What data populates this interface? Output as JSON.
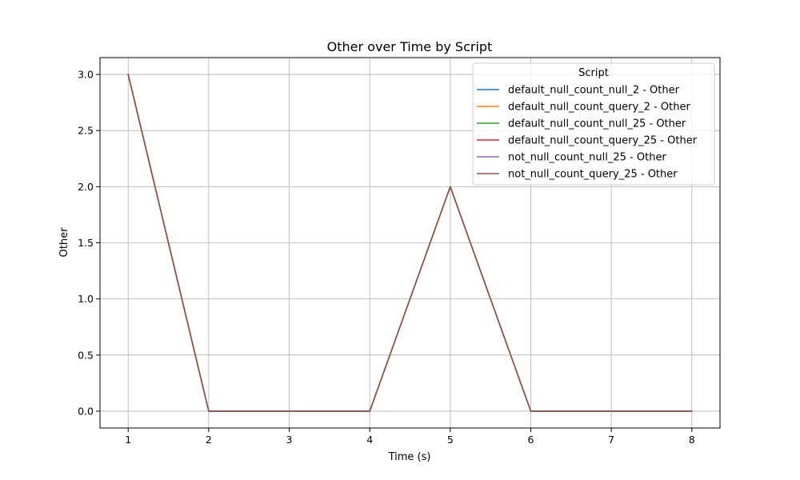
{
  "chart_data": {
    "type": "line",
    "title": "Other over Time by Script",
    "xlabel": "Time (s)",
    "ylabel": "Other",
    "xlim": [
      0.65,
      8.35
    ],
    "ylim": [
      -0.15,
      3.15
    ],
    "xticks": [
      "1",
      "2",
      "3",
      "4",
      "5",
      "6",
      "7",
      "8"
    ],
    "yticks": [
      "0.0",
      "0.5",
      "1.0",
      "1.5",
      "2.0",
      "2.5",
      "3.0"
    ],
    "grid": true,
    "legend": {
      "title": "Script",
      "position": "top-right"
    },
    "x": [
      1,
      2,
      3,
      4,
      5,
      6,
      7,
      8
    ],
    "series": [
      {
        "name": "default_null_count_null_2 - Other",
        "color": "#1f77b4",
        "values": [
          3,
          0,
          0,
          0,
          2,
          0,
          0,
          0
        ]
      },
      {
        "name": "default_null_count_query_2 - Other",
        "color": "#ff7f0e",
        "values": [
          3,
          0,
          0,
          0,
          2,
          0,
          0,
          0
        ]
      },
      {
        "name": "default_null_count_null_25 - Other",
        "color": "#2ca02c",
        "values": [
          3,
          0,
          0,
          0,
          2,
          0,
          0,
          0
        ]
      },
      {
        "name": "default_null_count_query_25 - Other",
        "color": "#d62728",
        "values": [
          3,
          0,
          0,
          0,
          2,
          0,
          0,
          0
        ]
      },
      {
        "name": "not_null_count_null_25 - Other",
        "color": "#9467bd",
        "values": [
          3,
          0,
          0,
          0,
          2,
          0,
          0,
          0
        ]
      },
      {
        "name": "not_null_count_query_25 - Other",
        "color": "#8c564b",
        "values": [
          3,
          0,
          0,
          0,
          2,
          0,
          0,
          0
        ]
      }
    ]
  }
}
